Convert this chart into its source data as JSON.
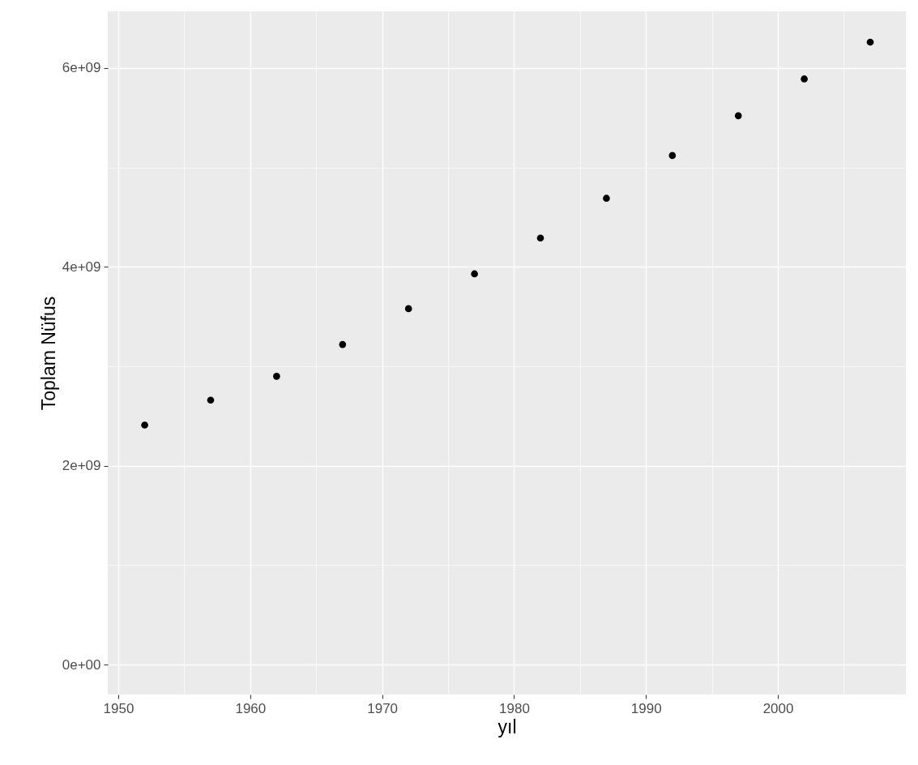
{
  "chart_data": {
    "type": "scatter",
    "xlabel": "yıl",
    "ylabel": "Toplam Nüfus",
    "x": [
      1952,
      1957,
      1962,
      1967,
      1972,
      1977,
      1982,
      1987,
      1992,
      1997,
      2002,
      2007
    ],
    "series": [
      {
        "color": "#000000",
        "values": [
          2410000000,
          2660000000,
          2900000000,
          3220000000,
          3580000000,
          3930000000,
          4290000000,
          4690000000,
          5120000000,
          5520000000,
          5890000000,
          6260000000
        ]
      }
    ],
    "xlim": [
      1949.2,
      2009.7
    ],
    "xticks": [
      1950,
      {
        "value": 1955,
        "label": null
      },
      1960,
      {
        "value": 1965,
        "label": null
      },
      1970,
      {
        "value": 1975,
        "label": null
      },
      1980,
      {
        "value": 1985,
        "label": null
      },
      1990,
      {
        "value": 1995,
        "label": null
      },
      2000,
      {
        "value": 2005,
        "label": null
      }
    ],
    "ylim": [
      -300000000,
      6570000000
    ],
    "yticks": [
      {
        "value": 0,
        "label": "0e+00"
      },
      {
        "value": 1000000000,
        "label": null
      },
      {
        "value": 2000000000,
        "label": "2e+09"
      },
      {
        "value": 3000000000,
        "label": null
      },
      {
        "value": 4000000000,
        "label": "4e+09"
      },
      {
        "value": 5000000000,
        "label": null
      },
      {
        "value": 6000000000,
        "label": "6e+09"
      }
    ],
    "grid": true,
    "marker": "circle"
  }
}
